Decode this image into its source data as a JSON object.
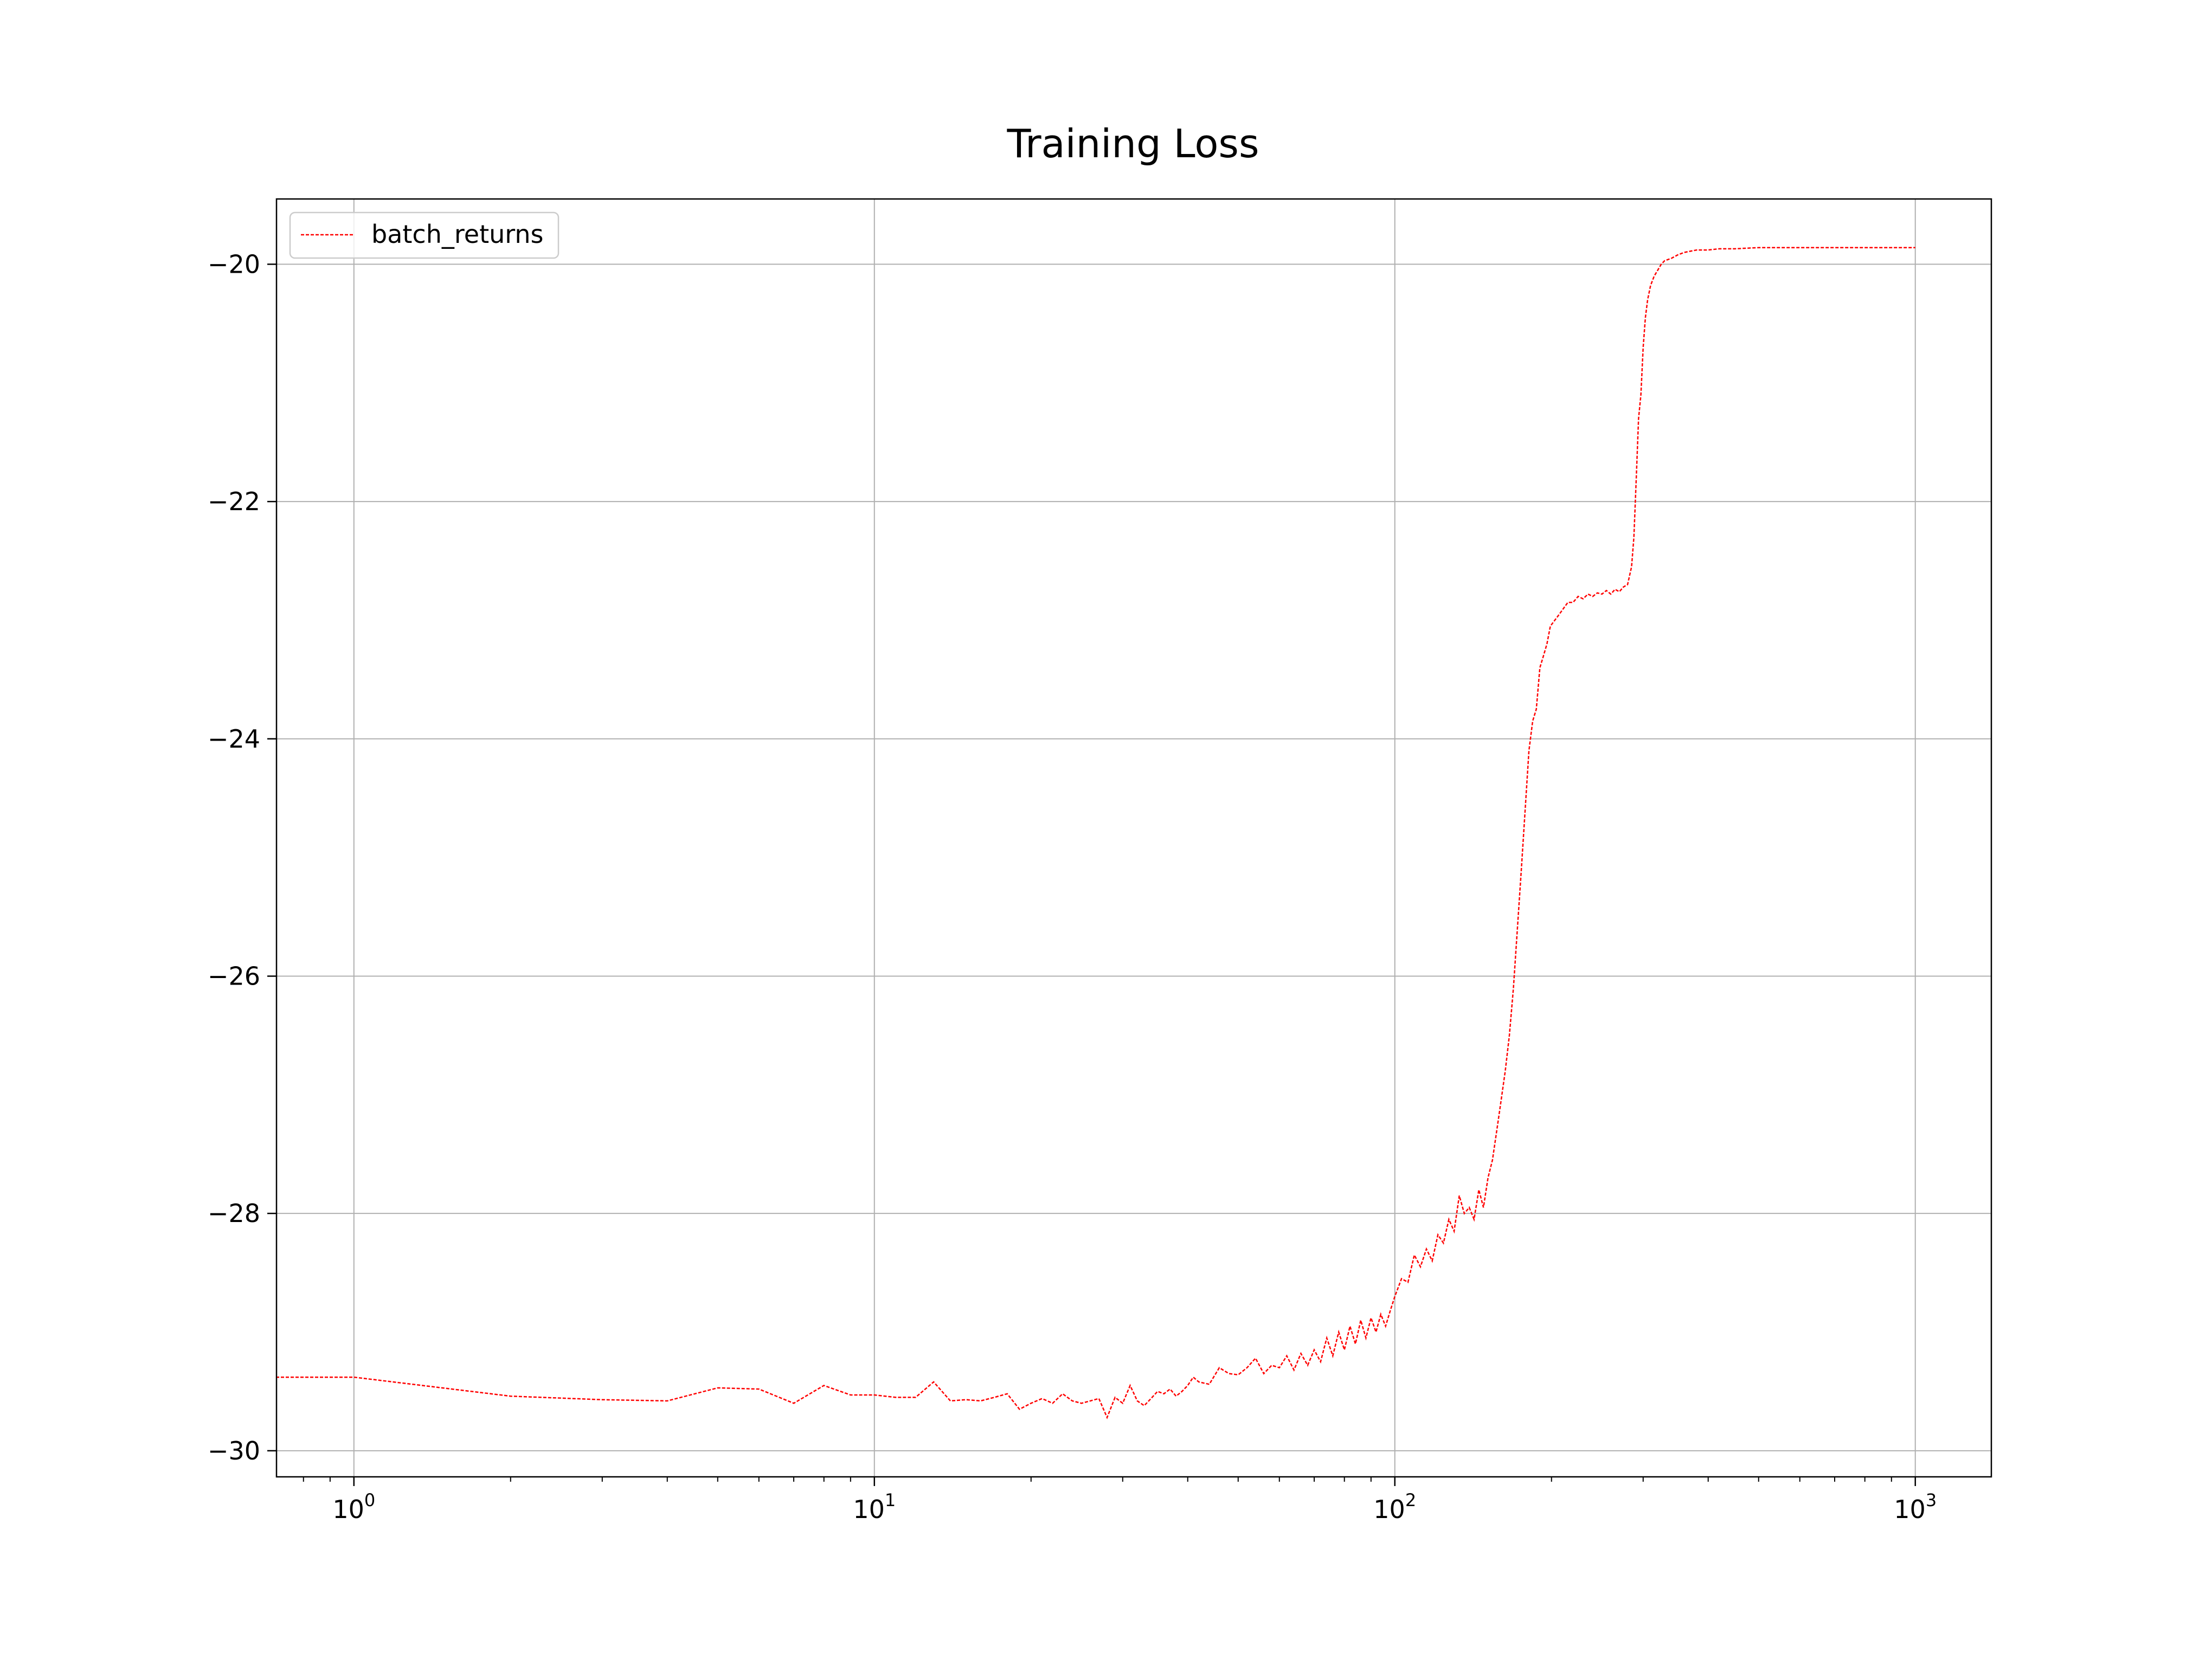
{
  "chart_data": {
    "type": "line",
    "title": "Training Loss",
    "xlabel": "",
    "ylabel": "",
    "xscale": "log",
    "xlim": [
      0.71,
      1400
    ],
    "ylim": [
      -30.22,
      -19.45
    ],
    "grid": true,
    "legend_position": "top-left",
    "x_ticks": [
      {
        "value": 1,
        "base": "10",
        "exp": "0"
      },
      {
        "value": 10,
        "base": "10",
        "exp": "1"
      },
      {
        "value": 100,
        "base": "10",
        "exp": "2"
      },
      {
        "value": 1000,
        "base": "10",
        "exp": "3"
      }
    ],
    "y_ticks": [
      {
        "value": -20,
        "label": "−20"
      },
      {
        "value": -22,
        "label": "−22"
      },
      {
        "value": -24,
        "label": "−24"
      },
      {
        "value": -26,
        "label": "−26"
      },
      {
        "value": -28,
        "label": "−28"
      },
      {
        "value": -30,
        "label": "−30"
      }
    ],
    "series": [
      {
        "name": "batch_returns",
        "color": "#ff0000",
        "style": "dashed",
        "points": [
          [
            0,
            -29.38
          ],
          [
            1,
            -29.38
          ],
          [
            2,
            -29.54
          ],
          [
            3,
            -29.57
          ],
          [
            4,
            -29.58
          ],
          [
            5,
            -29.47
          ],
          [
            6,
            -29.48
          ],
          [
            7,
            -29.6
          ],
          [
            8,
            -29.45
          ],
          [
            9,
            -29.53
          ],
          [
            10,
            -29.53
          ],
          [
            11,
            -29.55
          ],
          [
            12,
            -29.55
          ],
          [
            13,
            -29.42
          ],
          [
            14,
            -29.58
          ],
          [
            15,
            -29.57
          ],
          [
            16,
            -29.58
          ],
          [
            17,
            -29.55
          ],
          [
            18,
            -29.52
          ],
          [
            19,
            -29.65
          ],
          [
            20,
            -29.6
          ],
          [
            21,
            -29.56
          ],
          [
            22,
            -29.6
          ],
          [
            23,
            -29.52
          ],
          [
            24,
            -29.58
          ],
          [
            25,
            -29.6
          ],
          [
            26,
            -29.58
          ],
          [
            27,
            -29.56
          ],
          [
            28,
            -29.72
          ],
          [
            29,
            -29.55
          ],
          [
            30,
            -29.6
          ],
          [
            31,
            -29.45
          ],
          [
            32,
            -29.58
          ],
          [
            33,
            -29.62
          ],
          [
            34,
            -29.56
          ],
          [
            35,
            -29.5
          ],
          [
            36,
            -29.52
          ],
          [
            37,
            -29.48
          ],
          [
            38,
            -29.54
          ],
          [
            39,
            -29.5
          ],
          [
            40,
            -29.45
          ],
          [
            41,
            -29.38
          ],
          [
            42,
            -29.42
          ],
          [
            44,
            -29.44
          ],
          [
            46,
            -29.3
          ],
          [
            48,
            -29.35
          ],
          [
            50,
            -29.36
          ],
          [
            52,
            -29.3
          ],
          [
            54,
            -29.22
          ],
          [
            56,
            -29.35
          ],
          [
            58,
            -29.28
          ],
          [
            60,
            -29.3
          ],
          [
            62,
            -29.2
          ],
          [
            64,
            -29.32
          ],
          [
            66,
            -29.18
          ],
          [
            68,
            -29.28
          ],
          [
            70,
            -29.15
          ],
          [
            72,
            -29.25
          ],
          [
            74,
            -29.05
          ],
          [
            76,
            -29.2
          ],
          [
            78,
            -29.0
          ],
          [
            80,
            -29.15
          ],
          [
            82,
            -28.95
          ],
          [
            84,
            -29.1
          ],
          [
            86,
            -28.9
          ],
          [
            88,
            -29.05
          ],
          [
            90,
            -28.88
          ],
          [
            92,
            -29.0
          ],
          [
            94,
            -28.85
          ],
          [
            96,
            -28.95
          ],
          [
            98,
            -28.82
          ],
          [
            100,
            -28.7
          ],
          [
            103,
            -28.55
          ],
          [
            106,
            -28.58
          ],
          [
            109,
            -28.35
          ],
          [
            112,
            -28.45
          ],
          [
            115,
            -28.3
          ],
          [
            118,
            -28.4
          ],
          [
            121,
            -28.18
          ],
          [
            124,
            -28.25
          ],
          [
            127,
            -28.05
          ],
          [
            130,
            -28.15
          ],
          [
            133,
            -27.85
          ],
          [
            136,
            -28.0
          ],
          [
            139,
            -27.95
          ],
          [
            142,
            -28.05
          ],
          [
            145,
            -27.8
          ],
          [
            148,
            -27.95
          ],
          [
            151,
            -27.7
          ],
          [
            154,
            -27.55
          ],
          [
            157,
            -27.3
          ],
          [
            160,
            -27.05
          ],
          [
            163,
            -26.8
          ],
          [
            166,
            -26.5
          ],
          [
            169,
            -26.1
          ],
          [
            172,
            -25.6
          ],
          [
            175,
            -25.1
          ],
          [
            178,
            -24.6
          ],
          [
            181,
            -24.1
          ],
          [
            184,
            -23.85
          ],
          [
            187,
            -23.75
          ],
          [
            190,
            -23.4
          ],
          [
            193,
            -23.3
          ],
          [
            196,
            -23.2
          ],
          [
            199,
            -23.05
          ],
          [
            203,
            -23.0
          ],
          [
            207,
            -22.95
          ],
          [
            211,
            -22.9
          ],
          [
            215,
            -22.85
          ],
          [
            220,
            -22.85
          ],
          [
            225,
            -22.8
          ],
          [
            230,
            -22.82
          ],
          [
            235,
            -22.78
          ],
          [
            240,
            -22.8
          ],
          [
            245,
            -22.77
          ],
          [
            250,
            -22.78
          ],
          [
            255,
            -22.75
          ],
          [
            260,
            -22.78
          ],
          [
            265,
            -22.74
          ],
          [
            270,
            -22.76
          ],
          [
            275,
            -22.72
          ],
          [
            280,
            -22.7
          ],
          [
            285,
            -22.55
          ],
          [
            288,
            -22.3
          ],
          [
            291,
            -21.8
          ],
          [
            294,
            -21.3
          ],
          [
            297,
            -21.1
          ],
          [
            300,
            -20.7
          ],
          [
            303,
            -20.45
          ],
          [
            306,
            -20.3
          ],
          [
            310,
            -20.18
          ],
          [
            315,
            -20.1
          ],
          [
            320,
            -20.05
          ],
          [
            325,
            -20.0
          ],
          [
            330,
            -19.97
          ],
          [
            340,
            -19.95
          ],
          [
            350,
            -19.92
          ],
          [
            360,
            -19.9
          ],
          [
            380,
            -19.88
          ],
          [
            400,
            -19.88
          ],
          [
            420,
            -19.87
          ],
          [
            450,
            -19.87
          ],
          [
            500,
            -19.86
          ],
          [
            550,
            -19.86
          ],
          [
            600,
            -19.86
          ],
          [
            700,
            -19.86
          ],
          [
            800,
            -19.86
          ],
          [
            900,
            -19.86
          ],
          [
            1000,
            -19.86
          ]
        ]
      }
    ]
  }
}
